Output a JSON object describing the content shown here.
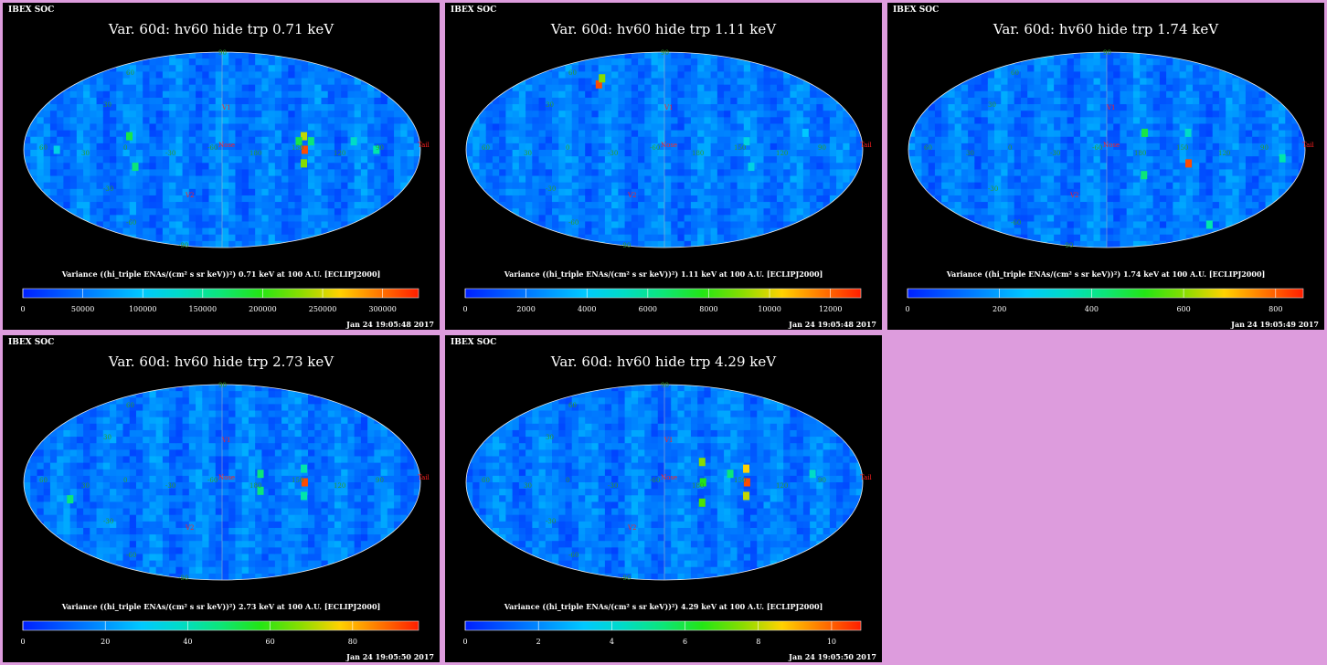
{
  "chart_data": [
    {
      "type": "heatmap",
      "title": "Var. 60d: hv60 hide trp 0.71 keV",
      "header": "IBEX SOC",
      "colorbar_label": "Variance ((hi_triple ENAs/(cm² s sr keV))²) 0.71 keV at 100 A.U. [ECLIPJ2000]",
      "colorbar_ticks": [
        "0",
        "50000",
        "100000",
        "150000",
        "200000",
        "250000",
        "300000"
      ],
      "colorbar_range": [
        0,
        330000
      ],
      "timestamp": "Jan 24 19:05:48 2017",
      "map_labels": {
        "lon_labels": [
          "60",
          "30",
          "0",
          "-30",
          "-60",
          "180",
          "150",
          "120",
          "90"
        ],
        "lat_labels": [
          "90",
          "60",
          "30",
          "-30",
          "-60",
          "-90"
        ],
        "feature_labels": [
          "Nose",
          "Tail",
          "V1",
          "V2"
        ]
      },
      "hotspots": [
        {
          "lon": -75,
          "lat": 0,
          "level": 0.95
        },
        {
          "lon": -75,
          "lat": 8,
          "level": 0.75
        },
        {
          "lon": -75,
          "lat": -8,
          "level": 0.7
        },
        {
          "lon": -70,
          "lat": 5,
          "level": 0.55
        },
        {
          "lon": -81,
          "lat": 5,
          "level": 0.5
        },
        {
          "lon": 85,
          "lat": 8,
          "level": 0.55
        },
        {
          "lon": 80,
          "lat": -10,
          "level": 0.5
        },
        {
          "lon": -140,
          "lat": 0,
          "level": 0.45
        },
        {
          "lon": -120,
          "lat": 5,
          "level": 0.4
        },
        {
          "lon": 150,
          "lat": 0,
          "level": 0.35
        }
      ]
    },
    {
      "type": "heatmap",
      "title": "Var. 60d: hv60 hide trp 1.11 keV",
      "header": "IBEX SOC",
      "colorbar_label": "Variance ((hi_triple ENAs/(cm² s sr keV))²) 1.11 keV at 100 A.U. [ECLIPJ2000]",
      "colorbar_ticks": [
        "0",
        "2000",
        "4000",
        "6000",
        "8000",
        "10000",
        "12000"
      ],
      "colorbar_range": [
        0,
        13000
      ],
      "timestamp": "Jan 24 19:05:48 2017",
      "map_labels": {
        "lon_labels": [
          "60",
          "30",
          "0",
          "-30",
          "-60",
          "180",
          "150",
          "120",
          "90"
        ],
        "lat_labels": [
          "90",
          "60",
          "30",
          "-30",
          "-60",
          "-90"
        ],
        "feature_labels": [
          "Nose",
          "Tail",
          "V1",
          "V2"
        ]
      },
      "hotspots": [
        {
          "lon": 80,
          "lat": 42,
          "level": 0.95
        },
        {
          "lon": 83,
          "lat": 47,
          "level": 0.7
        },
        {
          "lon": -75,
          "lat": 5,
          "level": 0.35
        },
        {
          "lon": -80,
          "lat": -10,
          "level": 0.35
        },
        {
          "lon": -130,
          "lat": 10,
          "level": 0.3
        }
      ]
    },
    {
      "type": "heatmap",
      "title": "Var. 60d: hv60 hide trp 1.74 keV",
      "header": "IBEX SOC",
      "colorbar_label": "Variance ((hi_triple ENAs/(cm² s sr keV))²) 1.74 keV at 100 A.U. [ECLIPJ2000]",
      "colorbar_ticks": [
        "0",
        "200",
        "400",
        "600",
        "800"
      ],
      "colorbar_range": [
        0,
        860
      ],
      "timestamp": "Jan 24 19:05:49 2017",
      "map_labels": {
        "lon_labels": [
          "60",
          "30",
          "0",
          "-30",
          "-60",
          "180",
          "150",
          "120",
          "90"
        ],
        "lat_labels": [
          "90",
          "60",
          "30",
          "-30",
          "-60",
          "-90"
        ],
        "feature_labels": [
          "Nose",
          "Tail",
          "V1",
          "V2"
        ]
      },
      "hotspots": [
        {
          "lon": -75,
          "lat": -8,
          "level": 0.95
        },
        {
          "lon": -35,
          "lat": 10,
          "level": 0.55
        },
        {
          "lon": -35,
          "lat": -15,
          "level": 0.5
        },
        {
          "lon": -75,
          "lat": 10,
          "level": 0.4
        },
        {
          "lon": -160,
          "lat": -5,
          "level": 0.45
        },
        {
          "lon": -145,
          "lat": -50,
          "level": 0.45
        }
      ]
    },
    {
      "type": "heatmap",
      "title": "Var. 60d: hv60 hide trp 2.73 keV",
      "header": "IBEX SOC",
      "colorbar_label": "Variance ((hi_triple ENAs/(cm² s sr keV))²) 2.73 keV at 100 A.U. [ECLIPJ2000]",
      "colorbar_ticks": [
        "0",
        "20",
        "40",
        "60",
        "80"
      ],
      "colorbar_range": [
        0,
        96
      ],
      "timestamp": "Jan 24 19:05:50 2017",
      "map_labels": {
        "lon_labels": [
          "60",
          "30",
          "0",
          "-30",
          "-60",
          "180",
          "150",
          "120",
          "90"
        ],
        "lat_labels": [
          "90",
          "60",
          "30",
          "-30",
          "-60",
          "-90"
        ],
        "feature_labels": [
          "Nose",
          "Tail",
          "V1",
          "V2"
        ]
      },
      "hotspots": [
        {
          "lon": -75,
          "lat": 0,
          "level": 0.95
        },
        {
          "lon": -75,
          "lat": 8,
          "level": 0.45
        },
        {
          "lon": -75,
          "lat": -8,
          "level": 0.45
        },
        {
          "lon": -35,
          "lat": 5,
          "level": 0.5
        },
        {
          "lon": -35,
          "lat": -5,
          "level": 0.5
        },
        {
          "lon": 140,
          "lat": -10,
          "level": 0.5
        }
      ]
    },
    {
      "type": "heatmap",
      "title": "Var. 60d: hv60 hide trp 4.29 keV",
      "header": "IBEX SOC",
      "colorbar_label": "Variance ((hi_triple ENAs/(cm² s sr keV))²) 4.29 keV at 100 A.U. [ECLIPJ2000]",
      "colorbar_ticks": [
        "0",
        "2",
        "4",
        "6",
        "8",
        "10"
      ],
      "colorbar_range": [
        0,
        10.8
      ],
      "timestamp": "Jan 24 19:05:50 2017",
      "map_labels": {
        "lon_labels": [
          "60",
          "30",
          "0",
          "-30",
          "-60",
          "180",
          "150",
          "120",
          "90"
        ],
        "lat_labels": [
          "90",
          "60",
          "30",
          "-30",
          "-60",
          "-90"
        ],
        "feature_labels": [
          "Nose",
          "Tail",
          "V1",
          "V2"
        ]
      },
      "hotspots": [
        {
          "lon": -75,
          "lat": 0,
          "level": 0.95
        },
        {
          "lon": -75,
          "lat": 8,
          "level": 0.8
        },
        {
          "lon": -75,
          "lat": -8,
          "level": 0.75
        },
        {
          "lon": -35,
          "lat": 12,
          "level": 0.7
        },
        {
          "lon": -35,
          "lat": 0,
          "level": 0.6
        },
        {
          "lon": -35,
          "lat": -12,
          "level": 0.65
        },
        {
          "lon": -60,
          "lat": 5,
          "level": 0.5
        },
        {
          "lon": -135,
          "lat": 5,
          "level": 0.4
        }
      ]
    }
  ]
}
